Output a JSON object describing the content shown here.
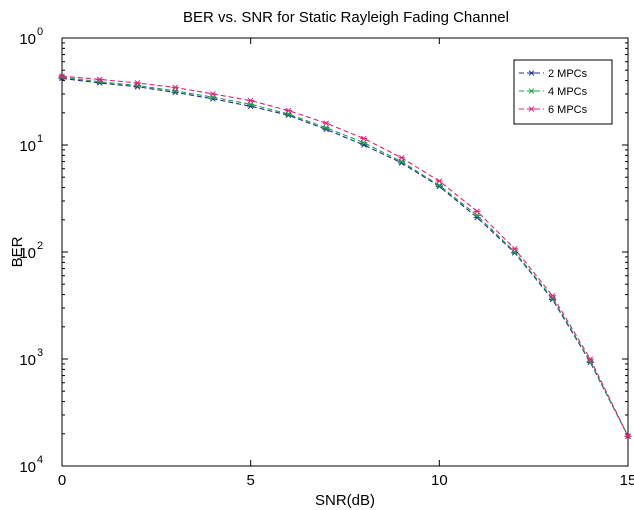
{
  "chart_data": {
    "type": "line",
    "title": "BER vs. SNR for Static Rayleigh Fading Channel",
    "xlabel": "SNR(dB)",
    "ylabel": "BER",
    "xlim": [
      0,
      15
    ],
    "ylim": [
      0.0001,
      1
    ],
    "yscale": "log",
    "xticks": [
      0,
      5,
      10,
      15
    ],
    "xtick_labels": [
      "0",
      "5",
      "10",
      "15"
    ],
    "yticks": [
      1,
      0.1,
      0.01,
      0.001,
      0.0001
    ],
    "ytick_labels": [
      {
        "base": "10",
        "exp": "0"
      },
      {
        "base": "10",
        "exp": "1"
      },
      {
        "base": "10",
        "exp": "2"
      },
      {
        "base": "10",
        "exp": "3"
      },
      {
        "base": "10",
        "exp": "4"
      }
    ],
    "grid": false,
    "legend_position": "top-right",
    "x": [
      0,
      1,
      2,
      3,
      4,
      5,
      6,
      7,
      8,
      9,
      10,
      11,
      12,
      13,
      14,
      15
    ],
    "series": [
      {
        "name": "2 MPCs",
        "color": "#1f2f8f",
        "marker": "asterisk",
        "line_style": "dashed",
        "values": [
          0.42,
          0.38,
          0.35,
          0.31,
          0.27,
          0.23,
          0.19,
          0.14,
          0.1,
          0.068,
          0.041,
          0.021,
          0.0098,
          0.0036,
          0.00093,
          0.00019
        ]
      },
      {
        "name": "4 MPCs",
        "color": "#1aa34a",
        "marker": "asterisk",
        "line_style": "dashed",
        "values": [
          0.43,
          0.39,
          0.36,
          0.32,
          0.28,
          0.24,
          0.195,
          0.145,
          0.105,
          0.07,
          0.042,
          0.022,
          0.01,
          0.0037,
          0.00095,
          0.00019
        ]
      },
      {
        "name": "6 MPCs",
        "color": "#e0207a",
        "marker": "asterisk",
        "line_style": "dashed",
        "values": [
          0.44,
          0.41,
          0.38,
          0.345,
          0.3,
          0.26,
          0.21,
          0.16,
          0.115,
          0.076,
          0.046,
          0.024,
          0.0107,
          0.0039,
          0.001,
          0.00019
        ]
      }
    ]
  }
}
